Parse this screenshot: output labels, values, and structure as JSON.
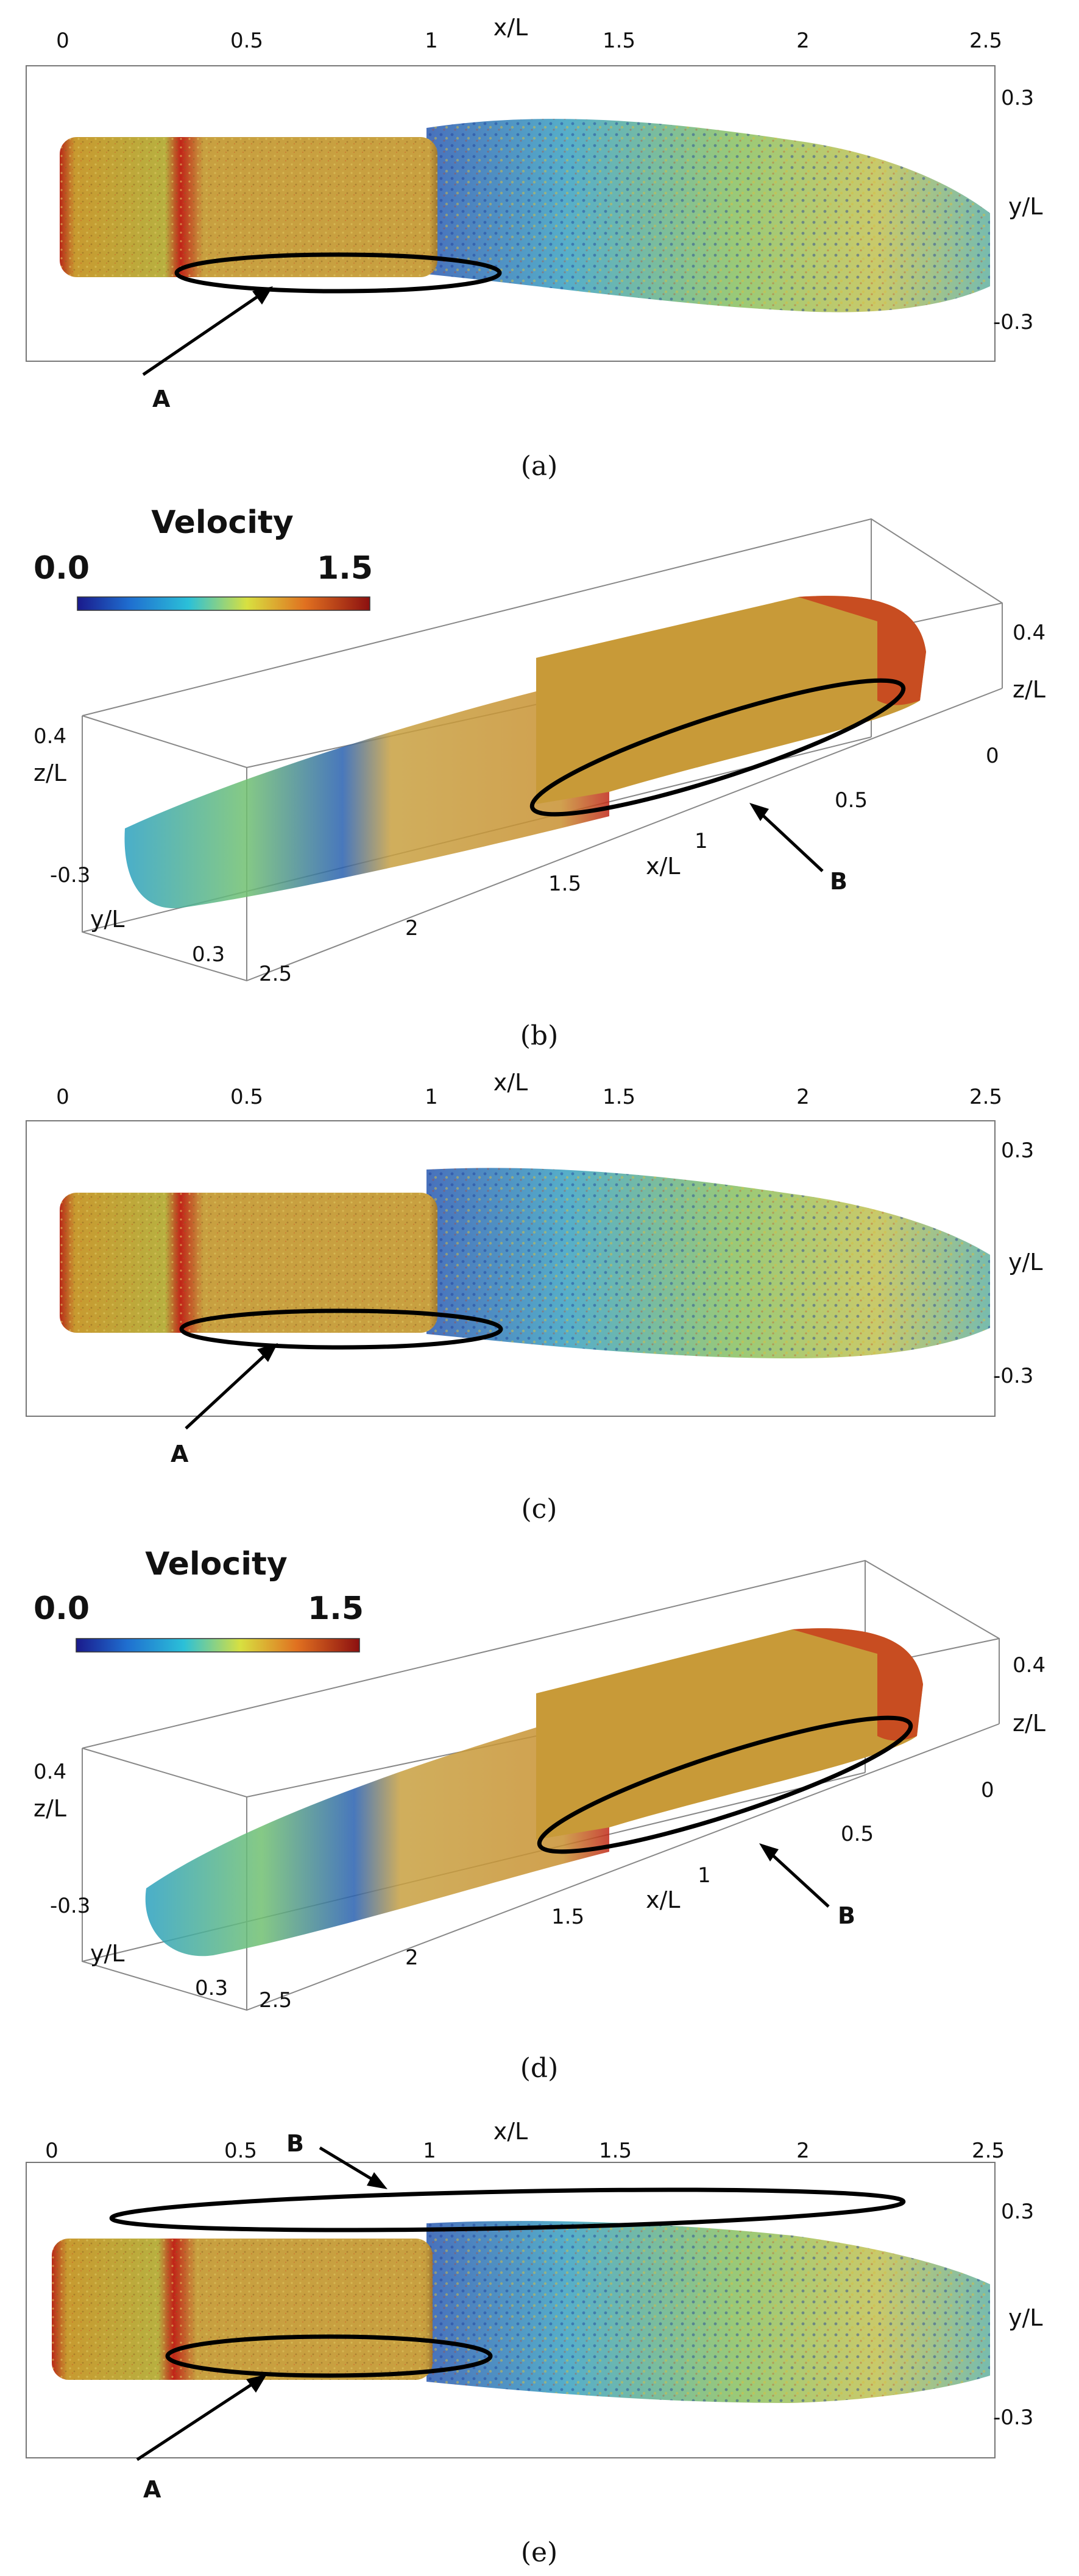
{
  "panels": [
    {
      "id": "a",
      "view": "top",
      "caption": "(a)",
      "x_axis_label": "x/L",
      "x_ticks": [
        "0",
        "0.5",
        "1",
        "1.5",
        "2",
        "2.5"
      ],
      "y_axis_label": "y/L",
      "y_ticks": [
        "0.3",
        "-0.3"
      ],
      "annotations": [
        "A"
      ]
    },
    {
      "id": "b",
      "view": "3d",
      "caption": "(b)",
      "colorbar": {
        "title": "Velocity",
        "min": "0.0",
        "max": "1.5"
      },
      "x_axis_label": "x/L",
      "x_ticks": [
        "0",
        "0.5",
        "1",
        "1.5",
        "2",
        "2.5"
      ],
      "y_axis_label": "y/L",
      "y_ticks": [
        "-0.3",
        "0.3"
      ],
      "z_axis_label": "z/L",
      "z_ticks_left": [
        "0.4"
      ],
      "z_ticks_right": [
        "0.4"
      ],
      "annotations": [
        "B"
      ]
    },
    {
      "id": "c",
      "view": "top",
      "caption": "(c)",
      "x_axis_label": "x/L",
      "x_ticks": [
        "0",
        "0.5",
        "1",
        "1.5",
        "2",
        "2.5"
      ],
      "y_axis_label": "y/L",
      "y_ticks": [
        "0.3",
        "-0.3"
      ],
      "annotations": [
        "A"
      ]
    },
    {
      "id": "d",
      "view": "3d",
      "caption": "(d)",
      "colorbar": {
        "title": "Velocity",
        "min": "0.0",
        "max": "1.5"
      },
      "x_axis_label": "x/L",
      "x_ticks": [
        "0",
        "0.5",
        "1",
        "1.5",
        "2",
        "2.5"
      ],
      "y_axis_label": "y/L",
      "y_ticks": [
        "-0.3",
        "0.3"
      ],
      "z_axis_label": "z/L",
      "z_ticks_left": [
        "0.4"
      ],
      "z_ticks_right": [
        "0.4"
      ],
      "annotations": [
        "B"
      ]
    },
    {
      "id": "e",
      "view": "top",
      "caption": "(e)",
      "x_axis_label": "x/L",
      "x_ticks": [
        "0",
        "0.5",
        "1",
        "1.5",
        "2",
        "2.5"
      ],
      "y_axis_label": "y/L",
      "y_ticks": [
        "0.3",
        "-0.3"
      ],
      "annotations": [
        "A",
        "B"
      ]
    }
  ],
  "colors": {
    "velocity_colormap": [
      "#1a2a8c",
      "#1f6fd0",
      "#2bc0d8",
      "#b8d640",
      "#e0b020",
      "#c84020",
      "#8c1010"
    ],
    "body_tone": "#c09838",
    "front_band": "#c83a1c"
  }
}
